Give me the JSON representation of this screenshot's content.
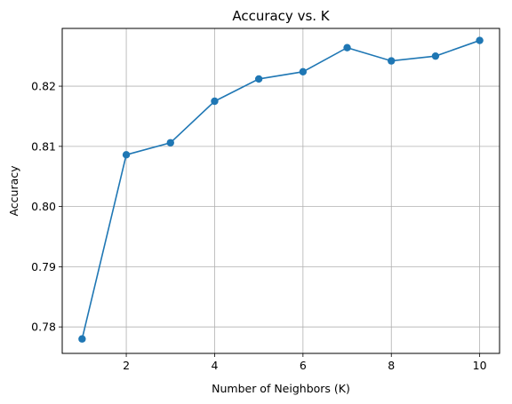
{
  "chart_data": {
    "type": "line",
    "title": "Accuracy vs. K",
    "xlabel": "Number of Neighbors (K)",
    "ylabel": "Accuracy",
    "xlim": [
      0.55,
      10.45
    ],
    "ylim": [
      0.7756,
      0.8296
    ],
    "x_ticks": [
      2,
      4,
      6,
      8,
      10
    ],
    "x_tick_labels": [
      "2",
      "4",
      "6",
      "8",
      "10"
    ],
    "y_ticks": [
      0.78,
      0.79,
      0.8,
      0.81,
      0.82
    ],
    "y_tick_labels": [
      "0.78",
      "0.79",
      "0.80",
      "0.81",
      "0.82"
    ],
    "grid": true,
    "series": [
      {
        "color": "#1f77b4",
        "marker": "circle",
        "x": [
          1,
          2,
          3,
          4,
          5,
          6,
          7,
          8,
          9,
          10
        ],
        "values": [
          0.778,
          0.8086,
          0.8106,
          0.8175,
          0.8212,
          0.8224,
          0.8264,
          0.8242,
          0.825,
          0.8276
        ]
      }
    ]
  }
}
